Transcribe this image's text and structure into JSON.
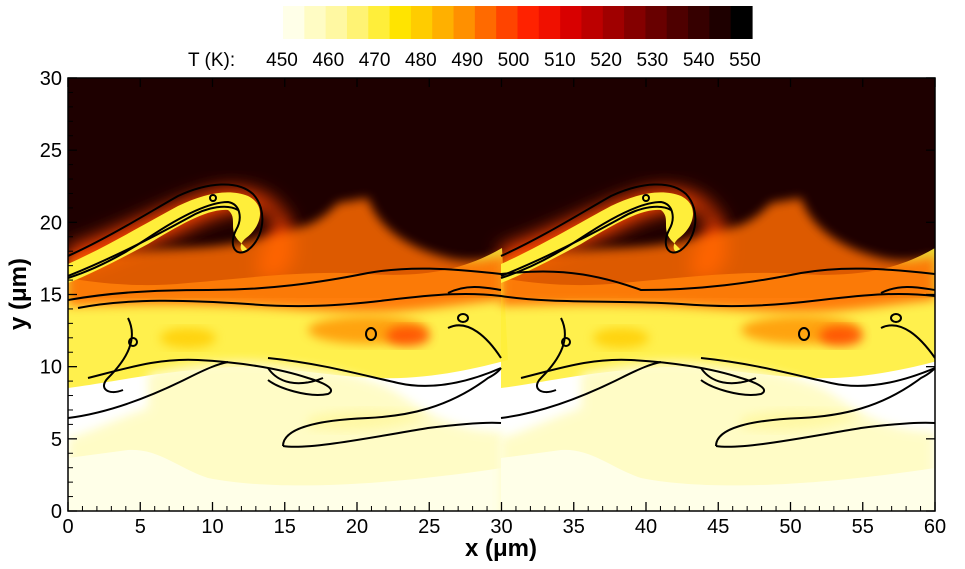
{
  "chart_data": {
    "type": "heatmap",
    "xlabel": "x (μm)",
    "ylabel": "y (μm)",
    "xlim": [
      0,
      60
    ],
    "ylim": [
      0,
      30
    ],
    "x_ticks": [
      0,
      5,
      10,
      15,
      20,
      25,
      30,
      35,
      40,
      45,
      50,
      55,
      60
    ],
    "y_ticks": [
      0,
      5,
      10,
      15,
      20,
      25,
      30
    ],
    "colorbar": {
      "title": "T (K):",
      "tick_labels": [
        450,
        460,
        470,
        480,
        490,
        500,
        510,
        520,
        530,
        540,
        550
      ],
      "levels": [
        445,
        450,
        455,
        460,
        465,
        470,
        475,
        480,
        485,
        490,
        495,
        500,
        505,
        510,
        515,
        520,
        525,
        530,
        535,
        540,
        545,
        550
      ],
      "colors": [
        "#ffffe8",
        "#fffcc4",
        "#fff8a2",
        "#fff374",
        "#ffee3a",
        "#ffe400",
        "#ffcc00",
        "#ffb000",
        "#ff9000",
        "#ff6a00",
        "#ff4400",
        "#ff2200",
        "#f01000",
        "#d80000",
        "#bc0000",
        "#a00000",
        "#840000",
        "#680000",
        "#4e0000",
        "#360000",
        "#1e0000",
        "#000000"
      ]
    },
    "field_description": "periodic temperature field with period 30 μm in x",
    "hot_region_K": 550,
    "cold_region_K": 445,
    "contour_color": "#000000"
  }
}
